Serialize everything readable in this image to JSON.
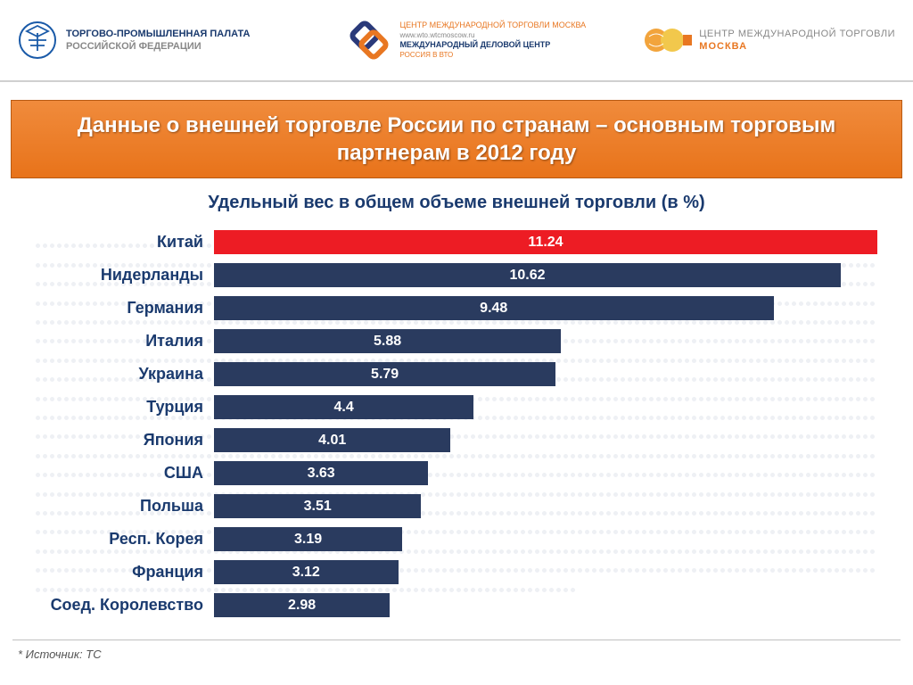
{
  "header": {
    "left": {
      "line1": "ТОРГОВО-ПРОМЫШЛЕННАЯ ПАЛАТА",
      "line2": "РОССИЙСКОЙ ФЕДЕРАЦИИ",
      "icon_color": "#1a5aa8"
    },
    "center": {
      "l1": "ЦЕНТР МЕЖДУНАРОДНОЙ ТОРГОВЛИ МОСКВА",
      "l2": "www.wto.wtcmoscow.ru",
      "l3": "МЕЖДУНАРОДНЫЙ ДЕЛОВОЙ ЦЕНТР",
      "l4": "РОССИЯ В ВТО",
      "icon_color1": "#2a3a7a",
      "icon_color2": "#e87722"
    },
    "right": {
      "r1": "ЦЕНТР МЕЖДУНАРОДНОЙ ТОРГОВЛИ",
      "r2": "МОСКВА",
      "icon_color": "#f2a43c"
    }
  },
  "title": "Данные о внешней торговле России по странам – основным торговым партнерам в 2012 году",
  "subtitle": "Удельный вес в общем объеме внешней торговли (в %)",
  "chart": {
    "type": "bar-horizontal",
    "max_value": 11.24,
    "bar_colors": {
      "highlight": "#ed1c24",
      "default": "#2a3b5f"
    },
    "value_text_color": "#ffffff",
    "label_color": "#1a3a6e",
    "label_fontsize": 18,
    "value_fontsize": 16,
    "data": [
      {
        "label": "Китай",
        "value": 11.24,
        "value_text": "11.24",
        "highlight": true
      },
      {
        "label": "Нидерланды",
        "value": 10.62,
        "value_text": "10.62",
        "highlight": false
      },
      {
        "label": "Германия",
        "value": 9.48,
        "value_text": "9.48",
        "highlight": false
      },
      {
        "label": "Италия",
        "value": 5.88,
        "value_text": "5.88",
        "highlight": false
      },
      {
        "label": "Украина",
        "value": 5.79,
        "value_text": "5.79",
        "highlight": false
      },
      {
        "label": "Турция",
        "value": 4.4,
        "value_text": "4.4",
        "highlight": false
      },
      {
        "label": "Япония",
        "value": 4.01,
        "value_text": "4.01",
        "highlight": false
      },
      {
        "label": "США",
        "value": 3.63,
        "value_text": "3.63",
        "highlight": false
      },
      {
        "label": "Польша",
        "value": 3.51,
        "value_text": "3.51",
        "highlight": false
      },
      {
        "label": "Респ. Корея",
        "value": 3.19,
        "value_text": "3.19",
        "highlight": false
      },
      {
        "label": "Франция",
        "value": 3.12,
        "value_text": "3.12",
        "highlight": false
      },
      {
        "label": "Соед. Королевство",
        "value": 2.98,
        "value_text": "2.98",
        "highlight": false
      }
    ]
  },
  "source": "* Источник: ТС",
  "colors": {
    "title_bg_top": "#f08b3c",
    "title_bg_bottom": "#e8731a",
    "title_border": "#b85a12",
    "title_text": "#ffffff",
    "subtitle": "#1a3a6e",
    "page_bg": "#ffffff"
  }
}
